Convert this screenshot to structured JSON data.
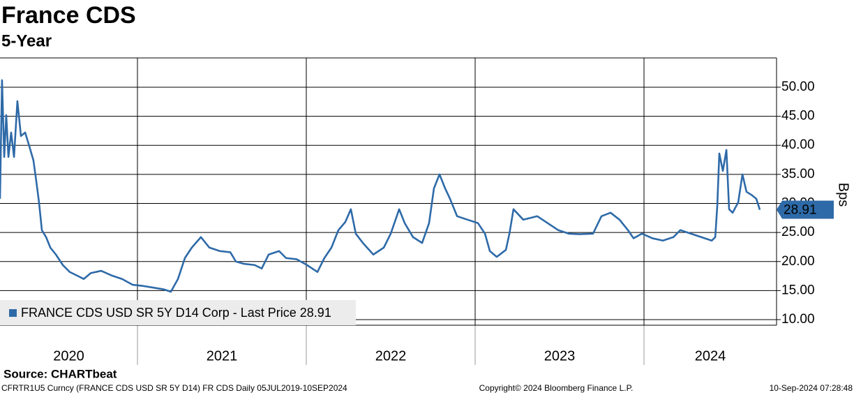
{
  "chart_data": {
    "type": "line",
    "title": "France CDS",
    "subtitle": "5-Year",
    "y_label": "Bps",
    "source": "Source: CHARTbeat",
    "footer_left": "CFRTR1U5 Curncy (FRANCE CDS USD SR 5Y D14) FR CDS  Daily 05JUL2019-10SEP2024",
    "footer_center": "Copyright© 2024 Bloomberg Finance L.P.",
    "footer_right": "10-Sep-2024 07:28:48",
    "x": [
      2020.186,
      2020.198,
      2020.211,
      2020.223,
      2020.236,
      2020.252,
      2020.269,
      2020.289,
      2020.31,
      2020.335,
      2020.36,
      2020.384,
      2020.401,
      2020.417,
      2020.434,
      2020.459,
      2020.484,
      2020.517,
      2020.558,
      2020.599,
      2020.641,
      2020.682,
      2020.723,
      2020.785,
      2020.847,
      2020.909,
      2020.971,
      2021.033,
      2021.095,
      2021.157,
      2021.198,
      2021.24,
      2021.281,
      2021.322,
      2021.376,
      2021.426,
      2021.488,
      2021.55,
      2021.583,
      2021.632,
      2021.694,
      2021.736,
      2021.777,
      2021.839,
      2021.88,
      2021.942,
      2022.004,
      2022.066,
      2022.107,
      2022.149,
      2022.19,
      2022.231,
      2022.264,
      2022.293,
      2022.335,
      2022.397,
      2022.459,
      2022.5,
      2022.55,
      2022.583,
      2022.632,
      2022.686,
      2022.727,
      2022.756,
      2022.789,
      2022.822,
      2022.851,
      2022.893,
      2022.955,
      2023.017,
      2023.058,
      2023.087,
      2023.128,
      2023.182,
      2023.203,
      2023.227,
      2023.285,
      2023.368,
      2023.43,
      2023.492,
      2023.554,
      2023.616,
      2023.698,
      2023.748,
      2023.802,
      2023.855,
      2023.905,
      2023.938,
      2023.988,
      2024.05,
      2024.112,
      2024.174,
      2024.215,
      2024.277,
      2024.339,
      2024.401,
      2024.422,
      2024.434,
      2024.446,
      2024.467,
      2024.488,
      2024.504,
      2024.525,
      2024.558,
      2024.583,
      2024.607,
      2024.64,
      2024.665,
      2024.686
    ],
    "series": [
      {
        "name": "FRANCE CDS USD SR 5Y D14 Corp - Last Price 28.91",
        "color": "#2e6aa8",
        "values": [
          30.8,
          51.2,
          38,
          45.2,
          38,
          42.2,
          38,
          47.6,
          41.6,
          42.2,
          39.8,
          37.4,
          33.8,
          30.2,
          25.4,
          24.2,
          22.4,
          21.2,
          19.4,
          18.2,
          17.6,
          17,
          18,
          18.4,
          17.6,
          17,
          16,
          15.8,
          15.5,
          15.2,
          14.8,
          17,
          20.6,
          22.4,
          24.2,
          22.4,
          21.8,
          21.6,
          20,
          19.6,
          19.4,
          18.8,
          21.2,
          21.8,
          20.6,
          20.4,
          19.4,
          18.2,
          20.6,
          22.4,
          25.4,
          26.8,
          29,
          24.8,
          23.2,
          21.2,
          22.4,
          24.8,
          29,
          26.6,
          24.2,
          23.2,
          26.6,
          32.6,
          35,
          32.6,
          30.8,
          27.8,
          27.2,
          26.6,
          24.8,
          21.8,
          20.8,
          22,
          24.8,
          29,
          27.2,
          27.8,
          26.6,
          25.4,
          24.8,
          24.7,
          24.8,
          27.8,
          28.4,
          27.2,
          25.4,
          24,
          24.8,
          24,
          23.6,
          24.2,
          25.4,
          24.8,
          24.2,
          23.6,
          24.2,
          29.6,
          38.6,
          35.6,
          39.2,
          29,
          28.4,
          30.2,
          35,
          32,
          31.4,
          30.8,
          28.91
        ]
      }
    ],
    "xlim": [
      2020.186,
      2024.785
    ],
    "xticks": [
      2020,
      2021,
      2022,
      2023,
      2024
    ],
    "ylim": [
      9.04,
      55.04
    ],
    "yticks": [
      {
        "value": 10,
        "label": "10.00"
      },
      {
        "value": 15,
        "label": "15.00"
      },
      {
        "value": 20,
        "label": "20.00"
      },
      {
        "value": 25,
        "label": "25.00"
      },
      {
        "value": 30,
        "label": "30.00"
      },
      {
        "value": 35,
        "label": "35.00"
      },
      {
        "value": 40,
        "label": "40.00"
      },
      {
        "value": 45,
        "label": "45.00"
      },
      {
        "value": 50,
        "label": "50.00"
      }
    ],
    "grid": true,
    "legend": "lower left"
  }
}
